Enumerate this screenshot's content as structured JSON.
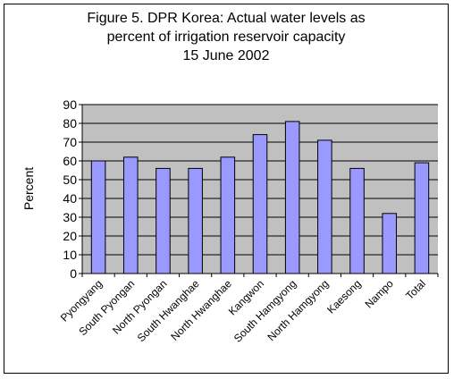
{
  "chart_data": {
    "type": "bar",
    "title_lines": [
      "Figure 5. DPR Korea: Actual water levels as",
      "percent of irrigation reservoir capacity",
      "15 June 2002"
    ],
    "ylabel": "Percent",
    "xlabel": "",
    "categories": [
      "Pyongyang",
      "South Pyongan",
      "North Pyongan",
      "South Hwanghae",
      "North Hwanghae",
      "Kangwon",
      "South Hamgyong",
      "North Hamgyong",
      "Kaesong",
      "Nampo",
      "Total"
    ],
    "values": [
      60,
      62,
      56,
      56,
      62,
      74,
      81,
      71,
      56,
      32,
      59
    ],
    "ylim": [
      0,
      90
    ],
    "yticks": [
      0,
      10,
      20,
      30,
      40,
      50,
      60,
      70,
      80,
      90
    ],
    "grid": true,
    "legend": false,
    "colors": {
      "bar": "#9999ff",
      "plot_bg": "#c0c0c0",
      "grid": "#000000"
    }
  }
}
